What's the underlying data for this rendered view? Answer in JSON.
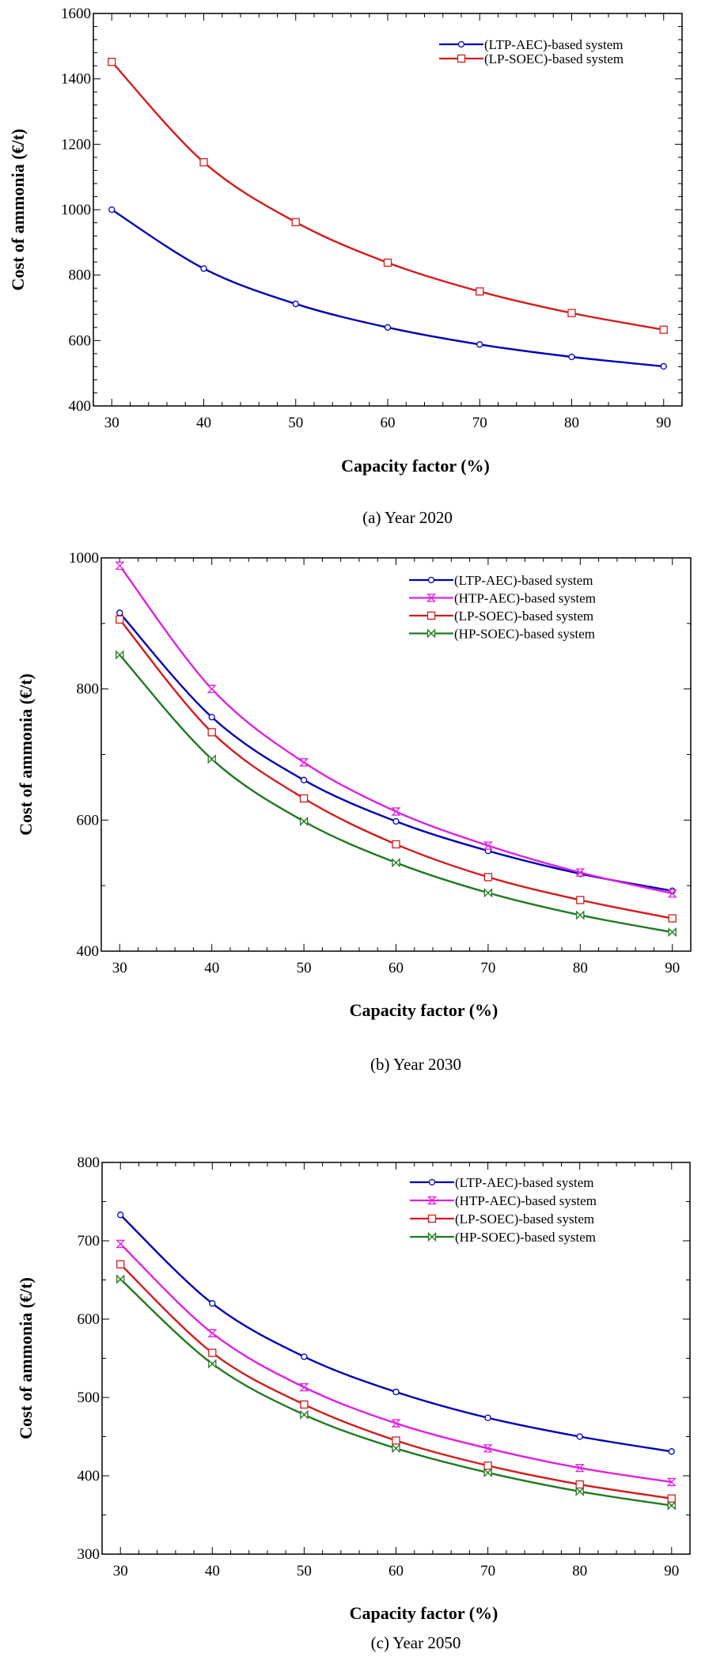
{
  "chart_data": [
    {
      "type": "line",
      "caption": "(a)   Year 2020",
      "title": "",
      "xlabel": "Capacity factor (%)",
      "ylabel": "Cost of ammonia  (€/t)",
      "x": [
        30,
        40,
        50,
        60,
        70,
        80,
        90
      ],
      "xlim": [
        28,
        92
      ],
      "ylim": [
        400,
        1600
      ],
      "xticks": [
        30,
        40,
        50,
        60,
        70,
        80,
        90
      ],
      "yticks": [
        400,
        600,
        800,
        1000,
        1200,
        1400,
        1600
      ],
      "grid": false,
      "legend_position": "top-right",
      "series": [
        {
          "name": "(LTP-AEC)-based system",
          "color": "#0000b4",
          "marker": "circle",
          "values": [
            1000,
            820,
            712,
            640,
            588,
            550,
            521
          ]
        },
        {
          "name": "(LP-SOEC)-based system",
          "color": "#d41b1b",
          "marker": "square",
          "values": [
            1452,
            1145,
            962,
            838,
            750,
            684,
            633
          ]
        }
      ]
    },
    {
      "type": "line",
      "caption": "(b)   Year 2030",
      "title": "",
      "xlabel": "Capacity factor (%)",
      "ylabel": "Cost of ammonia  (€/t)",
      "x": [
        30,
        40,
        50,
        60,
        70,
        80,
        90
      ],
      "xlim": [
        28,
        92
      ],
      "ylim": [
        400,
        1000
      ],
      "xticks": [
        30,
        40,
        50,
        60,
        70,
        80,
        90
      ],
      "yticks": [
        400,
        600,
        800,
        1000
      ],
      "grid": false,
      "legend_position": "top-right",
      "series": [
        {
          "name": "(LTP-AEC)-based system",
          "color": "#0000b4",
          "marker": "circle",
          "values": [
            916,
            757,
            661,
            598,
            553,
            518,
            492
          ]
        },
        {
          "name": "(HTP-AEC)-based system",
          "color": "#e020e0",
          "marker": "hourglass",
          "values": [
            988,
            800,
            688,
            613,
            561,
            520,
            488
          ]
        },
        {
          "name": "(LP-SOEC)-based system",
          "color": "#d41b1b",
          "marker": "square",
          "values": [
            906,
            734,
            633,
            563,
            513,
            478,
            450
          ]
        },
        {
          "name": "(HP-SOEC)-based system",
          "color": "#1e7a1e",
          "marker": "bowtie",
          "values": [
            852,
            693,
            598,
            535,
            489,
            455,
            429
          ]
        }
      ]
    },
    {
      "type": "line",
      "caption": "(c)   Year 2050",
      "title": "",
      "xlabel": "Capacity factor (%)",
      "ylabel": "Cost of ammonia  (€/t)",
      "x": [
        30,
        40,
        50,
        60,
        70,
        80,
        90
      ],
      "xlim": [
        28,
        92
      ],
      "ylim": [
        300,
        800
      ],
      "xticks": [
        30,
        40,
        50,
        60,
        70,
        80,
        90
      ],
      "yticks": [
        300,
        400,
        500,
        600,
        700,
        800
      ],
      "grid": false,
      "legend_position": "top-right",
      "series": [
        {
          "name": "(LTP-AEC)-based system",
          "color": "#0000b4",
          "marker": "circle",
          "values": [
            733,
            620,
            552,
            507,
            474,
            450,
            431
          ]
        },
        {
          "name": "(HTP-AEC)-based system",
          "color": "#e020e0",
          "marker": "hourglass",
          "values": [
            696,
            582,
            513,
            467,
            435,
            410,
            392
          ]
        },
        {
          "name": "(LP-SOEC)-based system",
          "color": "#d41b1b",
          "marker": "square",
          "values": [
            670,
            557,
            491,
            445,
            413,
            389,
            371
          ]
        },
        {
          "name": "(HP-SOEC)-based system",
          "color": "#1e7a1e",
          "marker": "bowtie",
          "values": [
            651,
            543,
            478,
            435,
            404,
            380,
            362
          ]
        }
      ]
    }
  ]
}
